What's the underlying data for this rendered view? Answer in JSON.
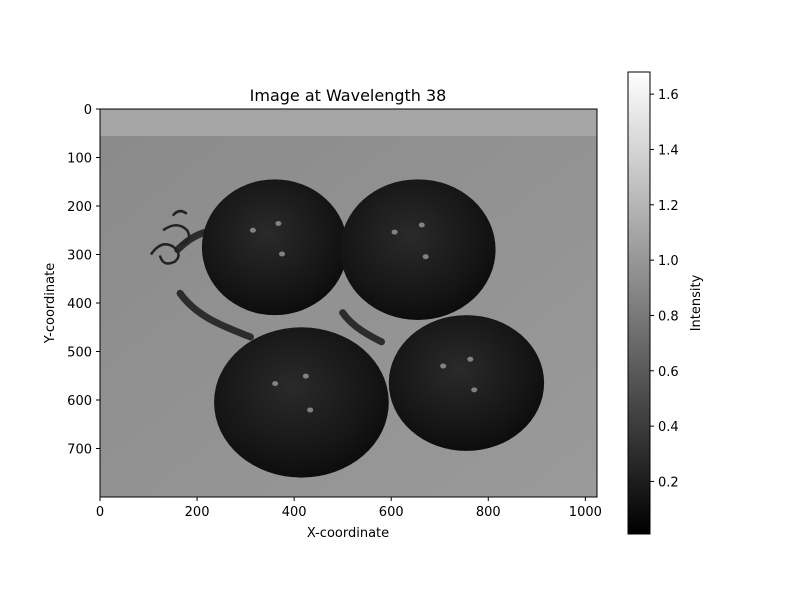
{
  "chart_data": {
    "type": "heatmap",
    "title": "Image at Wavelength 38",
    "xlabel": "X-coordinate",
    "ylabel": "Y-coordinate",
    "xlim": [
      0,
      1024
    ],
    "ylim": [
      800,
      0
    ],
    "x_ticks": [
      0,
      200,
      400,
      600,
      800,
      1000
    ],
    "y_ticks": [
      0,
      100,
      200,
      300,
      400,
      500,
      600,
      700
    ],
    "colormap": "gray",
    "colorbar": {
      "label": "Intensity",
      "range": [
        0.01,
        1.68
      ],
      "ticks": [
        0.2,
        0.4,
        0.6,
        0.8,
        1.0,
        1.2,
        1.4,
        1.6
      ]
    },
    "image": {
      "description_values": {
        "background_intensity": 0.55,
        "top_band_intensity": 0.7,
        "object_intensity": 0.12,
        "highlight_intensity": 0.9
      },
      "objects": [
        {
          "cx": 360,
          "cy": 285,
          "rx": 150,
          "ry": 140
        },
        {
          "cx": 655,
          "cy": 290,
          "rx": 160,
          "ry": 145
        },
        {
          "cx": 415,
          "cy": 605,
          "rx": 180,
          "ry": 155
        },
        {
          "cx": 755,
          "cy": 565,
          "rx": 160,
          "ry": 140
        }
      ]
    }
  }
}
